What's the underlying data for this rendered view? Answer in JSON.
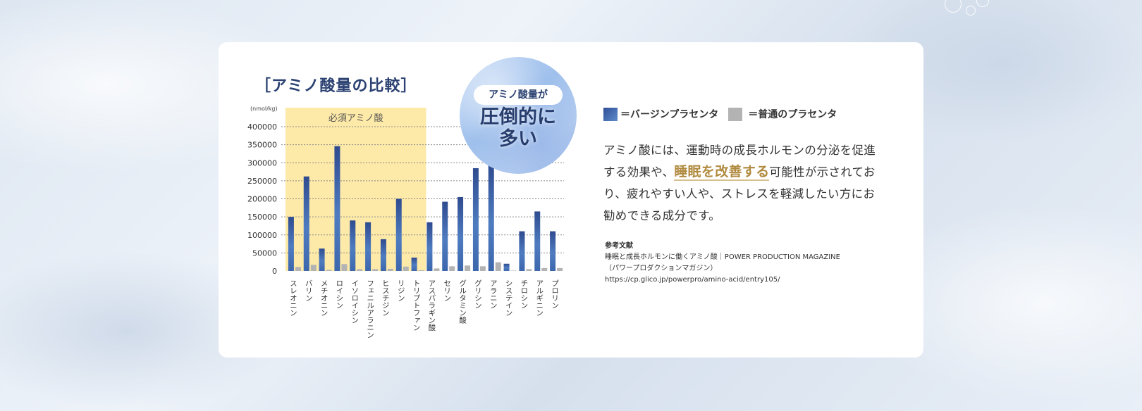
{
  "chart_data": {
    "type": "bar",
    "title": "［アミノ酸量の比較］",
    "unit_label": "(nmol/kg)",
    "ylim": [
      0,
      400000
    ],
    "yticks": [
      0,
      50000,
      100000,
      150000,
      200000,
      250000,
      300000,
      350000,
      400000
    ],
    "grid": "dotted horizontal",
    "highlight": {
      "label": "必須アミノ酸",
      "from_index": 0,
      "to_index": 8,
      "color": "#fde9a8"
    },
    "categories": [
      "スレオニン",
      "バリン",
      "メチオニン",
      "ロイシン",
      "イソロイシン",
      "フェニルアラニン",
      "ヒスチジン",
      "リジン",
      "トリプトファン",
      "アスパラギン酸",
      "セリン",
      "グルタミン酸",
      "グリシン",
      "アラニン",
      "システイン",
      "チロシン",
      "アルギニン",
      "プロリン"
    ],
    "series": [
      {
        "name": "バージンプラセンタ",
        "color": "#3f68ad",
        "values": [
          150000,
          262000,
          62000,
          346000,
          140000,
          135000,
          88000,
          200000,
          37000,
          135000,
          192000,
          205000,
          285000,
          295000,
          20000,
          110000,
          165000,
          110000
        ]
      },
      {
        "name": "普通のプラセンタ",
        "color": "#b3b3b3",
        "values": [
          11000,
          17000,
          3000,
          19000,
          5000,
          5000,
          6000,
          12000,
          2000,
          7000,
          13000,
          15000,
          13000,
          24000,
          1000,
          5000,
          8000,
          8000
        ]
      }
    ]
  },
  "badge": {
    "pill": "アミノ酸量が",
    "main": "圧倒的に\n多い"
  },
  "legend": {
    "virgin": "＝バージンプラセンタ",
    "normal": "＝普通のプラセンタ",
    "virgin_color": "#3f68ad",
    "normal_color": "#b3b3b3"
  },
  "description": {
    "part1": "アミノ酸には、運動時の成長ホルモンの分泌を促進する効果や、",
    "highlight": "睡眠を改善する",
    "part2": "可能性が示されており、疲れやすい人や、ストレスを軽減したい方にお勧めできる成分です。"
  },
  "references": {
    "title": "参考文献",
    "line1": "睡眠と成長ホルモンに働くアミノ酸｜POWER PRODUCTION MAGAZINE",
    "line2": "（パワープロダクションマガジン）",
    "line3": "https://cp.glico.jp/powerpro/amino-acid/entry105/"
  }
}
